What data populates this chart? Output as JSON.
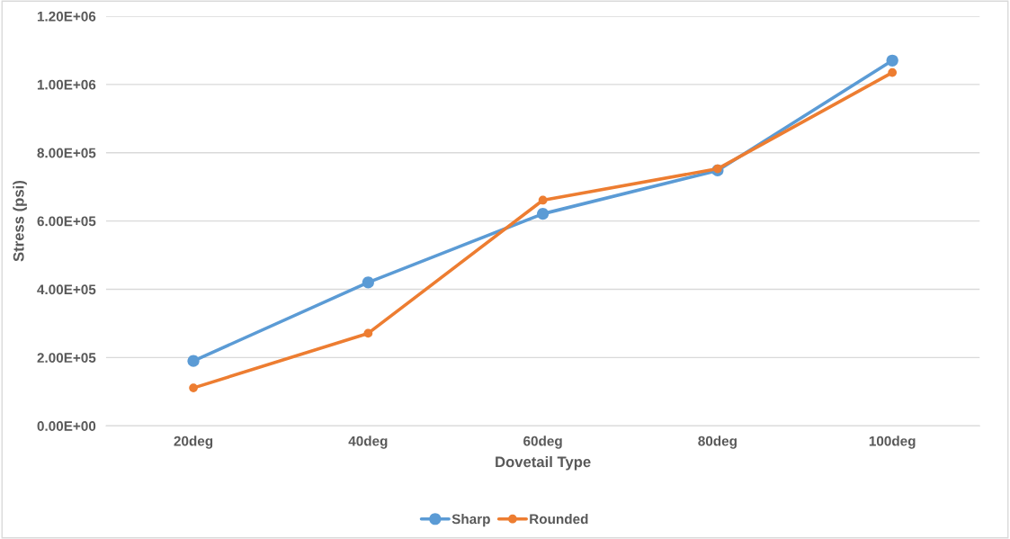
{
  "chart_data": {
    "type": "line",
    "xlabel": "Dovetail Type",
    "ylabel": "Stress (psi)",
    "categories": [
      "20deg",
      "40deg",
      "60deg",
      "80deg",
      "100deg"
    ],
    "series": [
      {
        "name": "Sharp",
        "color": "#5b9bd5",
        "values": [
          190000,
          420000,
          621000,
          748000,
          1070000
        ]
      },
      {
        "name": "Rounded",
        "color": "#ed7d31",
        "values": [
          111000,
          271000,
          661000,
          753000,
          1035000
        ]
      }
    ],
    "ylim": [
      0,
      1200000
    ],
    "yticks": [
      {
        "value": 0,
        "label": "0.00E+00"
      },
      {
        "value": 200000,
        "label": "2.00E+05"
      },
      {
        "value": 400000,
        "label": "4.00E+05"
      },
      {
        "value": 600000,
        "label": "6.00E+05"
      },
      {
        "value": 800000,
        "label": "8.00E+05"
      },
      {
        "value": 1000000,
        "label": "1.00E+06"
      },
      {
        "value": 1200000,
        "label": "1.20E+06"
      }
    ],
    "grid": "y",
    "legend": "bottom",
    "marker": "circle",
    "line_style": "solid"
  }
}
